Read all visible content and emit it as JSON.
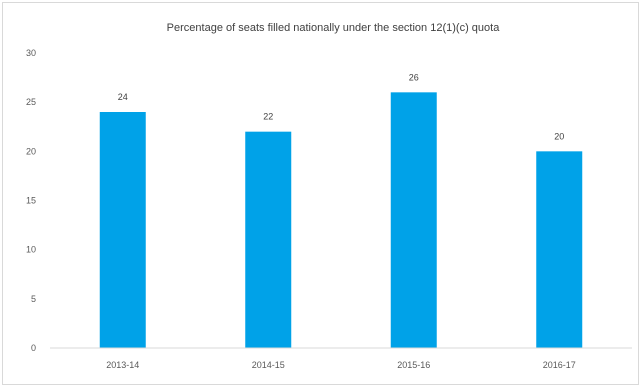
{
  "chart_data": {
    "type": "bar",
    "title": "Percentage of seats filled nationally under the section 12(1)(c) quota",
    "xlabel": "",
    "ylabel": "",
    "categories": [
      "2013-14",
      "2014-15",
      "2015-16",
      "2016-17"
    ],
    "values": [
      24,
      22,
      26,
      20
    ],
    "ylim": [
      0,
      30
    ],
    "yticks": [
      0,
      5,
      10,
      15,
      20,
      25,
      30
    ],
    "grid": false,
    "legend": "none",
    "bar_color": "#00a2e8"
  }
}
